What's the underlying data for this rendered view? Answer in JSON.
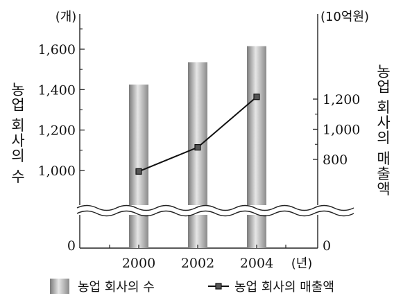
{
  "chart_data": {
    "type": "bar+line",
    "categories": [
      "2000",
      "2002",
      "2004"
    ],
    "x_unit_label": "(년)",
    "series": [
      {
        "name": "농업 회사의 수",
        "kind": "bar",
        "axis": "left",
        "values": [
          1425,
          1535,
          1615
        ]
      },
      {
        "name": "농업 회사의 매출액",
        "kind": "line",
        "axis": "right",
        "values": [
          720,
          880,
          1215
        ]
      }
    ],
    "left_axis": {
      "label": "농업 회사의 수",
      "unit": "(개)",
      "ticks": [
        "0",
        "1,000",
        "1,200",
        "1,400",
        "1,600"
      ],
      "tick_values": [
        0,
        1000,
        1200,
        1400,
        1600
      ],
      "broken": true
    },
    "right_axis": {
      "label": "농업 회사의 매출액",
      "unit": "(10억원)",
      "ticks": [
        "0",
        "800",
        "1,000",
        "1,200"
      ],
      "tick_values": [
        0,
        800,
        1000,
        1200
      ],
      "broken": true
    },
    "legend": {
      "position": "bottom",
      "items": [
        "농업 회사의 수",
        "농업 회사의 매출액"
      ]
    },
    "grid": false
  }
}
